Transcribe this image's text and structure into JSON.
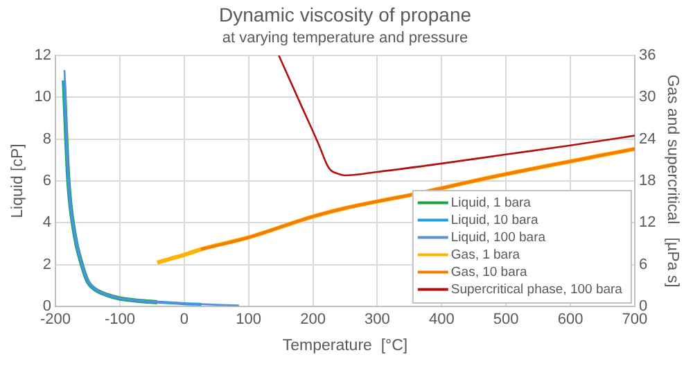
{
  "chart_data": {
    "type": "line",
    "title": "Dynamic viscosity of propane",
    "subtitle": "at varying temperature and pressure",
    "xlabel": "Temperature  [°C]",
    "ylabel": "Liquid [cP]",
    "y2label": "Gas and supercritical   [µPa s]",
    "xlim": [
      -200,
      700
    ],
    "xticks": [
      -200,
      -100,
      0,
      100,
      200,
      300,
      400,
      500,
      600,
      700
    ],
    "ylim": [
      0,
      12
    ],
    "yticks": [
      0,
      2,
      4,
      6,
      8,
      10,
      12
    ],
    "y2lim": [
      0,
      36
    ],
    "y2ticks": [
      0,
      6,
      12,
      18,
      24,
      30,
      36
    ],
    "grid": true,
    "legend": "bottom right",
    "marker": "none",
    "line_style": "solid",
    "series": [
      {
        "name": "Liquid, 1 bara",
        "color": "#1aa33a",
        "x": [
          -187,
          -180,
          -170,
          -160,
          -150,
          -140,
          -120,
          -100,
          -80,
          -60,
          -42
        ],
        "values": [
          10.8,
          6.0,
          3.4,
          2.1,
          1.2,
          0.85,
          0.55,
          0.38,
          0.3,
          0.24,
          0.2
        ]
      },
      {
        "name": "Liquid, 10 bara",
        "color": "#1f9fe0",
        "x": [
          -187,
          -180,
          -170,
          -160,
          -150,
          -140,
          -120,
          -100,
          -80,
          -60,
          -40,
          -20,
          0,
          27
        ],
        "values": [
          10.8,
          6.0,
          3.4,
          2.1,
          1.2,
          0.85,
          0.55,
          0.38,
          0.3,
          0.24,
          0.2,
          0.17,
          0.13,
          0.1
        ]
      },
      {
        "name": "Liquid, 100 bara",
        "color": "#5b8fd6",
        "x": [
          -186,
          -180,
          -170,
          -160,
          -150,
          -140,
          -120,
          -100,
          -80,
          -60,
          -40,
          -20,
          0,
          25,
          50,
          85
        ],
        "values": [
          11.3,
          6.1,
          3.5,
          2.15,
          1.25,
          0.88,
          0.57,
          0.4,
          0.31,
          0.25,
          0.21,
          0.17,
          0.14,
          0.11,
          0.08,
          0.05
        ]
      },
      {
        "name": "Gas, 1 bara",
        "color": "#ffb300",
        "axis": "y2",
        "x": [
          -42,
          0,
          26,
          100,
          200,
          250,
          362,
          480,
          700
        ],
        "values": [
          6.3,
          7.4,
          8.2,
          9.9,
          12.9,
          14.1,
          16.2,
          18.6,
          22.6
        ]
      },
      {
        "name": "Gas, 10 bara",
        "color": "#f57c00",
        "axis": "y2",
        "x": [
          26,
          100,
          200,
          250,
          362,
          480,
          700
        ],
        "values": [
          8.2,
          9.9,
          12.9,
          14.1,
          16.2,
          18.6,
          22.6
        ]
      },
      {
        "name": "Supercritical phase, 100 bara",
        "color": "#b01010",
        "axis": "y2",
        "x": [
          147,
          180,
          210,
          221,
          227,
          240,
          250,
          300,
          400,
          500,
          600,
          700
        ],
        "values": [
          36,
          29.2,
          23,
          20.5,
          19.6,
          19.0,
          18.8,
          19.3,
          20.5,
          21.8,
          23.1,
          24.5
        ]
      }
    ]
  }
}
